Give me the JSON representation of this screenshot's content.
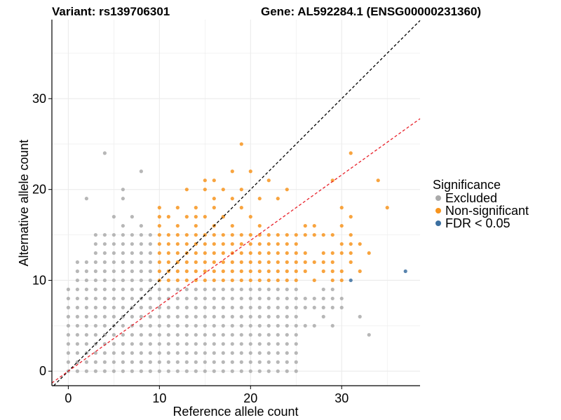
{
  "chart_data": {
    "type": "scatter",
    "title_left": "Variant: rs139706301",
    "title_right": "Gene: AL592284.1 (ENSG00000231360)",
    "xlabel": "Reference allele count",
    "ylabel": "Alternative allele count",
    "xlim": [
      -1.8,
      38.6
    ],
    "ylim": [
      -1.6,
      38.7
    ],
    "xticks": [
      0,
      10,
      20,
      30
    ],
    "yticks": [
      0,
      10,
      20,
      30
    ],
    "grid": true,
    "reference_lines": [
      {
        "name": "identity",
        "slope": 1.0,
        "color": "#000000",
        "style": "dashed"
      },
      {
        "name": "fit",
        "slope": 0.72,
        "color": "#e8212a",
        "style": "dashed"
      }
    ],
    "legend": {
      "title": "Significance",
      "position": "right",
      "entries": [
        {
          "label": "Excluded",
          "color": "#aaaaaa"
        },
        {
          "label": "Non-significant",
          "color": "#f7941d"
        },
        {
          "label": "FDR < 0.05",
          "color": "#3b6fa0"
        }
      ]
    },
    "series": [
      {
        "name": "Excluded",
        "color": "#aaaaaa",
        "grid_fill": {
          "x_from": 0,
          "x_to": 25,
          "y_from": 0,
          "y_to": 9
        },
        "band": {
          "x_from": 1,
          "x_to": 9,
          "y_from": 10,
          "y_to": 15
        },
        "points": [
          [
            2,
            19
          ],
          [
            4,
            24
          ],
          [
            8,
            22
          ],
          [
            6,
            20
          ],
          [
            6,
            19
          ],
          [
            5,
            17
          ],
          [
            7,
            17
          ],
          [
            6,
            16
          ],
          [
            8,
            16
          ],
          [
            26,
            8
          ],
          [
            26,
            7
          ],
          [
            27,
            8
          ],
          [
            27,
            7
          ],
          [
            28,
            9
          ],
          [
            28,
            8
          ],
          [
            28,
            7
          ],
          [
            28,
            6
          ],
          [
            29,
            9
          ],
          [
            29,
            8
          ],
          [
            29,
            7
          ],
          [
            30,
            8
          ],
          [
            30,
            7
          ],
          [
            32,
            6
          ],
          [
            33,
            4
          ],
          [
            29,
            5
          ],
          [
            27,
            5
          ],
          [
            26,
            5
          ]
        ]
      },
      {
        "name": "Non-significant",
        "color": "#f7941d",
        "band": {
          "x_from": 10,
          "x_to": 25,
          "y_from": 10,
          "y_to": 15
        },
        "points": [
          [
            19,
            25
          ],
          [
            18,
            22
          ],
          [
            20,
            22
          ],
          [
            15,
            21
          ],
          [
            16,
            21
          ],
          [
            22,
            21
          ],
          [
            13,
            20
          ],
          [
            15,
            20
          ],
          [
            17,
            20
          ],
          [
            19,
            20
          ],
          [
            24,
            20
          ],
          [
            16,
            19
          ],
          [
            18,
            19
          ],
          [
            21,
            19
          ],
          [
            23,
            19
          ],
          [
            10,
            18
          ],
          [
            12,
            18
          ],
          [
            14,
            18
          ],
          [
            16,
            18
          ],
          [
            19,
            18
          ],
          [
            10,
            17
          ],
          [
            11,
            17
          ],
          [
            13,
            17
          ],
          [
            14,
            17
          ],
          [
            15,
            17
          ],
          [
            17,
            17
          ],
          [
            20,
            17
          ],
          [
            10,
            16
          ],
          [
            12,
            16
          ],
          [
            14,
            16
          ],
          [
            16,
            16
          ],
          [
            18,
            16
          ],
          [
            21,
            16
          ],
          [
            26,
            16
          ],
          [
            27,
            16
          ],
          [
            26,
            15
          ],
          [
            27,
            15
          ],
          [
            28,
            15
          ],
          [
            29,
            15
          ],
          [
            30,
            16
          ],
          [
            30,
            18
          ],
          [
            31,
            17
          ],
          [
            31,
            24
          ],
          [
            34,
            21
          ],
          [
            35,
            18
          ],
          [
            29,
            21
          ],
          [
            31,
            15
          ],
          [
            31,
            14
          ],
          [
            30,
            13
          ],
          [
            32,
            14
          ],
          [
            33,
            13
          ],
          [
            31,
            13
          ],
          [
            26,
            12
          ],
          [
            27,
            12
          ],
          [
            28,
            12
          ],
          [
            26,
            11
          ],
          [
            28,
            11
          ],
          [
            29,
            11
          ],
          [
            30,
            11
          ],
          [
            29,
            12
          ],
          [
            31,
            12
          ],
          [
            27,
            10
          ],
          [
            29,
            10
          ],
          [
            30,
            10
          ],
          [
            32,
            11
          ],
          [
            28,
            13
          ],
          [
            29,
            13
          ],
          [
            30,
            14
          ],
          [
            26,
            13
          ]
        ]
      },
      {
        "name": "FDR < 0.05",
        "color": "#3b6fa0",
        "points": [
          [
            31,
            10
          ],
          [
            37,
            11
          ]
        ]
      }
    ]
  }
}
